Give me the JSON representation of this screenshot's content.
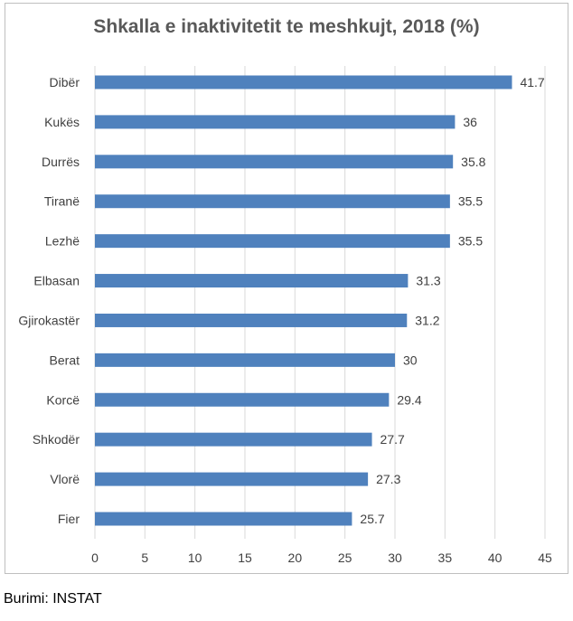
{
  "chart_data": {
    "type": "bar",
    "orientation": "horizontal",
    "title": "Shkalla e inaktivitetit te meshkujt, 2018 (%)",
    "categories": [
      "Dibër",
      "Kukës",
      "Durrës",
      "Tiranë",
      "Lezhë",
      "Elbasan",
      "Gjirokastër",
      "Berat",
      "Korcë",
      "Shkodër",
      "Vlorë",
      "Fier"
    ],
    "values": [
      41.7,
      36,
      35.8,
      35.5,
      35.5,
      31.3,
      31.2,
      30,
      29.4,
      27.7,
      27.3,
      25.7
    ],
    "data_labels": [
      "41.7",
      "36",
      "35.8",
      "35.5",
      "35.5",
      "31.3",
      "31.2",
      "30",
      "29.4",
      "27.7",
      "27.3",
      "25.7"
    ],
    "xlim": [
      0,
      45
    ],
    "xticks": [
      0,
      5,
      10,
      15,
      20,
      25,
      30,
      35,
      40,
      45
    ],
    "xlabel": "",
    "ylabel": "",
    "grid": true,
    "bar_color": "#4f81bd",
    "grid_color": "#d9d9d9",
    "text_color": "#404040"
  },
  "footer": {
    "source": "Burimi: INSTAT"
  }
}
